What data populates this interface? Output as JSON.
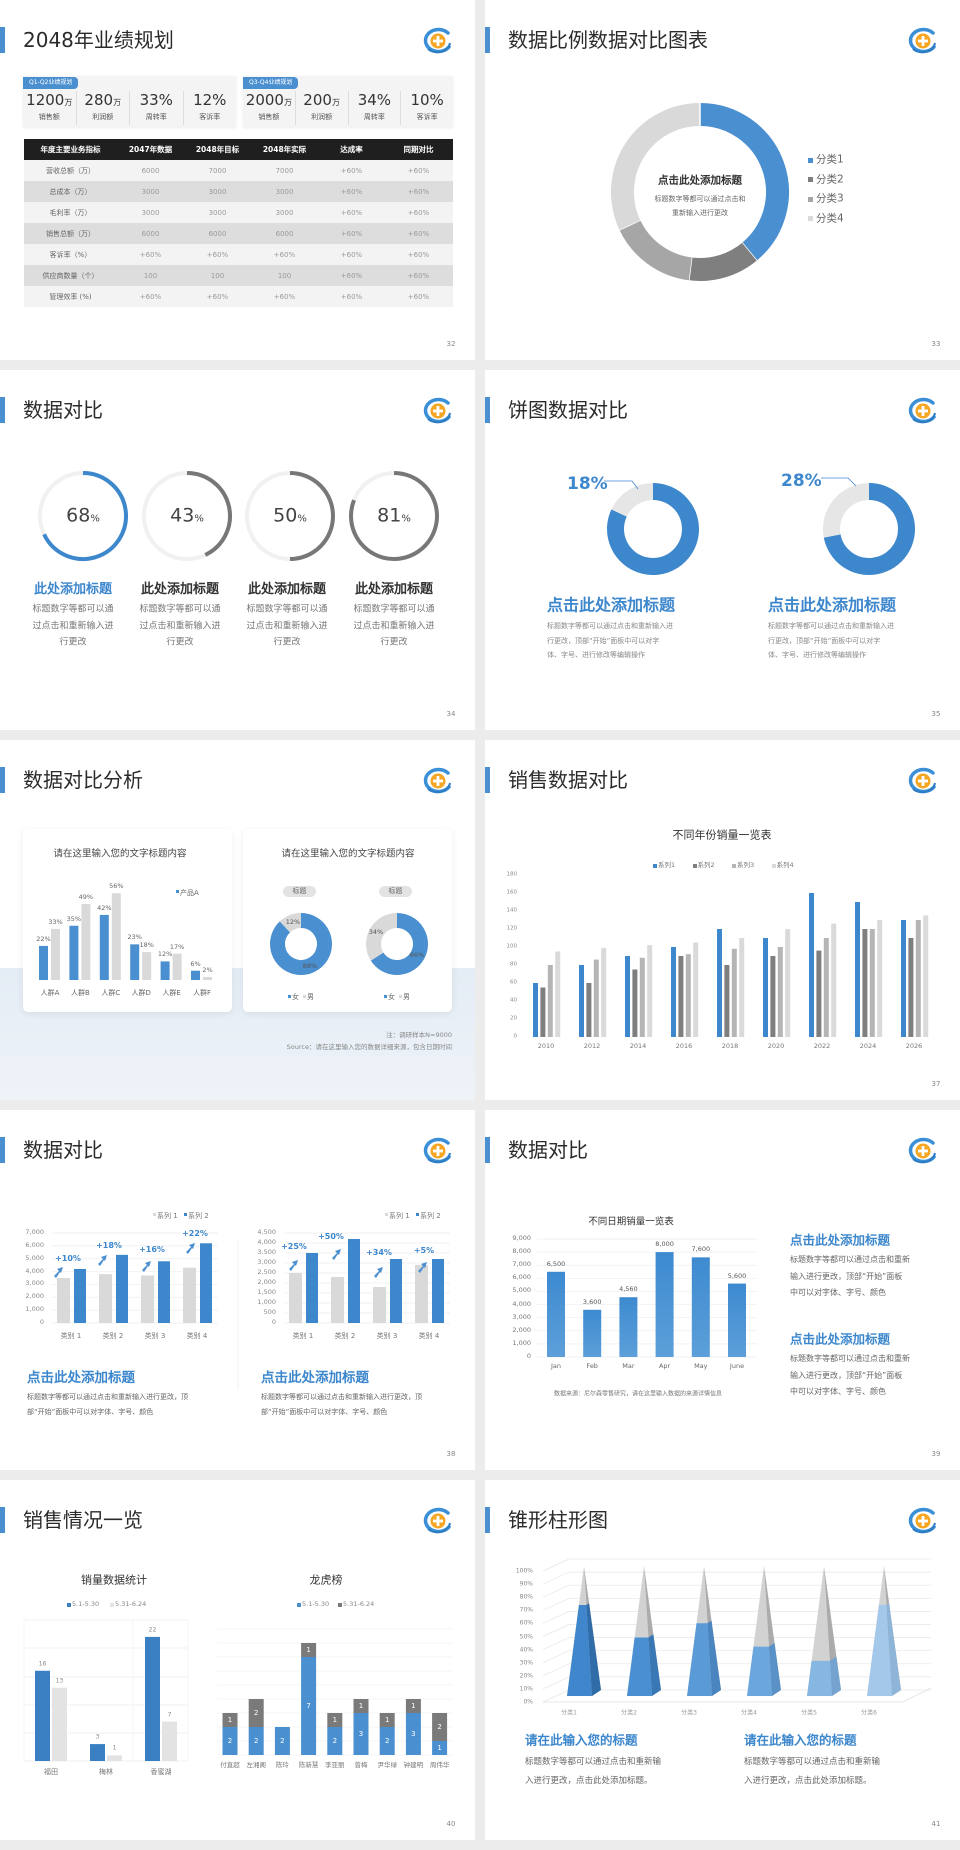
{
  "s32": {
    "title": "2048年业绩规划",
    "page": "32",
    "cards": [
      {
        "tag": "Q1-Q2业绩规划",
        "kpis": [
          {
            "value": "1200",
            "unit": "万",
            "label": "销售额"
          },
          {
            "value": "280",
            "unit": "万",
            "label": "利润额"
          },
          {
            "value": "33%",
            "unit": "",
            "label": "周转率"
          },
          {
            "value": "12%",
            "unit": "",
            "label": "客诉率"
          }
        ]
      },
      {
        "tag": "Q3-Q4业绩规划",
        "kpis": [
          {
            "value": "2000",
            "unit": "万",
            "label": "销售额"
          },
          {
            "value": "200",
            "unit": "万",
            "label": "利润额"
          },
          {
            "value": "34%",
            "unit": "",
            "label": "周转率"
          },
          {
            "value": "10%",
            "unit": "",
            "label": "客诉率"
          }
        ]
      }
    ],
    "table": {
      "headers": [
        "年度主要业务指标",
        "2047年数据",
        "2048年目标",
        "2048年实际",
        "达成率",
        "同期对比"
      ],
      "rows": [
        [
          "营收总额（万）",
          "6000",
          "7000",
          "7000",
          "+60%",
          "+60%"
        ],
        [
          "总成本（万）",
          "3000",
          "3000",
          "3000",
          "+60%",
          "+60%"
        ],
        [
          "毛利率（万）",
          "3000",
          "3000",
          "3000",
          "+60%",
          "+60%"
        ],
        [
          "销售总额（万）",
          "6000",
          "6000",
          "6000",
          "+60%",
          "+60%"
        ],
        [
          "客诉率（%）",
          "+60%",
          "+60%",
          "+60%",
          "+60%",
          "+60%"
        ],
        [
          "供应商数量（个）",
          "100",
          "100",
          "100",
          "+60%",
          "+60%"
        ],
        [
          "管理效率 (%)",
          "+60%",
          "+60%",
          "+60%",
          "+60%",
          "+60%"
        ]
      ]
    }
  },
  "s33": {
    "title": "数据比例数据对比图表",
    "page": "33",
    "center_title": "点击此处添加标题",
    "center_text": [
      "标题数字等都可以通过点击和",
      "重新输入进行更改"
    ]
  },
  "s34": {
    "title": "数据对比",
    "page": "34",
    "items": [
      {
        "value": 68,
        "number": "68",
        "unit": "%",
        "heading": "此处添加标题",
        "text": [
          "标题数字等都可以通",
          "过点击和重新输入进",
          "行更改"
        ],
        "color": "#3d87cd"
      },
      {
        "value": 43,
        "number": "43",
        "unit": "%",
        "heading": "此处添加标题",
        "text": [
          "标题数字等都可以通",
          "过点击和重新输入进",
          "行更改"
        ],
        "color": "#777777"
      },
      {
        "value": 50,
        "number": "50",
        "unit": "%",
        "heading": "此处添加标题",
        "text": [
          "标题数字等都可以通",
          "过点击和重新输入进",
          "行更改"
        ],
        "color": "#777777"
      },
      {
        "value": 81,
        "number": "81",
        "unit": "%",
        "heading": "此处添加标题",
        "text": [
          "标题数字等都可以通",
          "过点击和重新输入进",
          "行更改"
        ],
        "color": "#777777"
      }
    ]
  },
  "s35": {
    "title": "饼图数据对比",
    "page": "35",
    "items": [
      {
        "value": 18,
        "label": "18%",
        "heading": "点击此处添加标题",
        "text": [
          "标题数字等都可以通过点击和重新输入进",
          "行更改，顶部“开始”面板中可以对字",
          "体、字号、进行修改等编辑操作"
        ]
      },
      {
        "value": 28,
        "label": "28%",
        "heading": "点击此处添加标题",
        "text": [
          "标题数字等都可以通过点击和重新输入进",
          "行更改，顶部“开始”面板中可以对字",
          "体、字号、进行修改等编辑操作"
        ]
      }
    ]
  },
  "s36": {
    "title": "数据对比分析",
    "page": "36",
    "note": "注：调研样本N=9000",
    "source": "Source：请在这里输入您的数据详细来源，包含日期时间"
  },
  "s37": {
    "title": "销售数据对比",
    "page": "37"
  },
  "s38": {
    "title": "数据对比",
    "page": "38",
    "blocks": [
      {
        "heading": "点击此处添加标题",
        "text": [
          "标题数字等都可以通过点击和重新输入进行更改，顶",
          "部“开始”面板中可以对字体、字号、颜色"
        ]
      },
      {
        "heading": "点击此处添加标题",
        "text": [
          "标题数字等都可以通过点击和重新输入进行更改，顶",
          "部“开始”面板中可以对字体、字号、颜色"
        ]
      }
    ]
  },
  "s39": {
    "title": "数据对比",
    "page": "39",
    "source": "数据来源：尼尔森零售研究，请在这里输入数据的来源详情信息",
    "blocks": [
      {
        "heading": "点击此处添加标题",
        "text": [
          "标题数字等都可以通过点击和重新",
          "输入进行更改，顶部“开始”面板",
          "中可以对字体、字号、颜色"
        ]
      },
      {
        "heading": "点击此处添加标题",
        "text": [
          "标题数字等都可以通过点击和重新",
          "输入进行更改，顶部“开始”面板",
          "中可以对字体、字号、颜色"
        ]
      }
    ]
  },
  "s40": {
    "title": "销售情况一览",
    "page": "40"
  },
  "s41": {
    "title": "锥形柱形图",
    "page": "41",
    "blocks": [
      {
        "heading": "请在此输入您的标题",
        "text": [
          "标题数字等都可以通过点击和重新输",
          "入进行更改，点击此处添加标题。"
        ]
      },
      {
        "heading": "请在此输入您的标题",
        "text": [
          "标题数字等都可以通过点击和重新输",
          "入进行更改，点击此处添加标题。"
        ]
      }
    ]
  },
  "colors": {
    "accent": "#4a8fd0",
    "dark_gray": "#7f7f7f",
    "mid_gray": "#a6a6a6",
    "light_gray": "#d9d9d9"
  },
  "chart_data": [
    {
      "type": "pie",
      "donut": true,
      "categories": [
        "分类1",
        "分类2",
        "分类3",
        "分类4"
      ],
      "values": [
        39,
        13,
        16,
        32
      ],
      "colors": [
        "#4a8fd0",
        "#7f7f7f",
        "#a6a6a6",
        "#d9d9d9"
      ],
      "legend": "right"
    },
    {
      "type": "bar",
      "title": "请在这里输入您的文字标题内容",
      "categories": [
        "人群A",
        "人群B",
        "人群C",
        "人群D",
        "人群E",
        "人群F"
      ],
      "value_suffix": "%",
      "series": [
        {
          "name": "产品A",
          "values": [
            22,
            35,
            42,
            23,
            12,
            6
          ],
          "color": "#4a8fd0"
        },
        {
          "values": [
            33,
            49,
            56,
            18,
            17,
            2
          ],
          "color": "#d9d9d9"
        }
      ],
      "legend": "top-right"
    },
    {
      "type": "pie",
      "title": "请在这里输入您的文字标题内容",
      "categories": [
        "女",
        "男"
      ],
      "colors": [
        "#4a8fd0",
        "#d9d9d9"
      ],
      "value_suffix": "%",
      "charts": [
        {
          "tag": "标题",
          "values": [
            88,
            12
          ]
        },
        {
          "tag": "标题",
          "values": [
            66,
            34
          ]
        }
      ],
      "legend": "bottom"
    },
    {
      "type": "bar",
      "title": "不同年份销量一览表",
      "categories": [
        "2010",
        "2012",
        "2014",
        "2016",
        "2018",
        "2020",
        "2022",
        "2024",
        "2026"
      ],
      "ylim": [
        0,
        180
      ],
      "yticks": [
        "0",
        "20",
        "40",
        "60",
        "80",
        "100",
        "120",
        "140",
        "160",
        "180"
      ],
      "legend": "top",
      "series": [
        {
          "name": "系列1",
          "color": "#3d87cd",
          "values": [
            60,
            80,
            90,
            100,
            120,
            110,
            160,
            150,
            130
          ]
        },
        {
          "name": "系列2",
          "color": "#7f7f7f",
          "values": [
            55,
            60,
            75,
            90,
            80,
            90,
            96,
            120,
            110
          ]
        },
        {
          "name": "系列3",
          "color": "#b5b5b5",
          "values": [
            80,
            86,
            88,
            92,
            98,
            100,
            110,
            120,
            130
          ]
        },
        {
          "name": "系列4",
          "color": "#dadada",
          "values": [
            95,
            99,
            102,
            105,
            110,
            120,
            126,
            130,
            135
          ]
        }
      ]
    },
    {
      "type": "bar",
      "categories": [
        "类别 1",
        "类别 2",
        "类别 3",
        "类别 4"
      ],
      "ylim": [
        0,
        7000
      ],
      "yticks": [
        "0",
        "1,000",
        "2,000",
        "3,000",
        "4,000",
        "5,000",
        "6,000",
        "7,000"
      ],
      "legend": "top-right",
      "series": [
        {
          "name": "系列 1",
          "color": "#d9d9d9",
          "values": [
            3500,
            3800,
            3700,
            4300
          ]
        },
        {
          "name": "系列 2",
          "color": "#3d87cd",
          "values": [
            4200,
            5300,
            4800,
            6200
          ]
        }
      ],
      "annotations": [
        "+10%",
        "+18%",
        "+16%",
        "+22%"
      ]
    },
    {
      "type": "bar",
      "categories": [
        "类别 1",
        "类别 2",
        "类别 3",
        "类别 4"
      ],
      "ylim": [
        0,
        4500
      ],
      "yticks": [
        "0",
        "500",
        "1,000",
        "1,500",
        "2,000",
        "2,500",
        "3,000",
        "3,500",
        "4,000",
        "4,500"
      ],
      "legend": "top-right",
      "series": [
        {
          "name": "系列 1",
          "color": "#d9d9d9",
          "values": [
            2500,
            2300,
            1800,
            2900
          ]
        },
        {
          "name": "系列 2",
          "color": "#3d87cd",
          "values": [
            3500,
            4200,
            3200,
            3200
          ]
        }
      ],
      "annotations": [
        "+25%",
        "+50%",
        "+34%",
        "+5%"
      ]
    },
    {
      "type": "bar",
      "title": "不同日期销量一览表",
      "categories": [
        "Jan",
        "Feb",
        "Mar",
        "Apr",
        "May",
        "June"
      ],
      "ylim": [
        0,
        9000
      ],
      "yticks": [
        "0",
        "1,000",
        "2,000",
        "3,000",
        "4,000",
        "5,000",
        "6,000",
        "7,000",
        "8,000",
        "9,000"
      ],
      "values": [
        6500,
        3600,
        4560,
        8000,
        7600,
        5600
      ],
      "value_labels": [
        "6,500",
        "3,600",
        "4,560",
        "8,000",
        "7,600",
        "5,600"
      ]
    },
    {
      "type": "bar",
      "title": "销量数据统计",
      "categories": [
        "福田",
        "梅林",
        "香蜜湖"
      ],
      "legend": "top",
      "series": [
        {
          "name": "5.1-5.30",
          "color": "#3a7fc1",
          "values": [
            16,
            3,
            22
          ]
        },
        {
          "name": "5.31-6.24",
          "color": "#e3e3e3",
          "values": [
            13,
            1,
            7
          ]
        }
      ]
    },
    {
      "type": "bar",
      "stacked": true,
      "title": "龙虎榜",
      "categories": [
        "付直超",
        "左湘阁",
        "陈玲",
        "陈新慧",
        "李亚丽",
        "曾梅",
        "尹华绿",
        "钟建明",
        "周伟华"
      ],
      "legend": "top",
      "series": [
        {
          "name": "5.1-5.30",
          "color": "#4a8fd0",
          "values": [
            2,
            2,
            2,
            7,
            2,
            3,
            2,
            3,
            1
          ]
        },
        {
          "name": "5.31-6.24",
          "color": "#7a7a7a",
          "values": [
            1,
            2,
            0,
            1,
            1,
            1,
            1,
            1,
            2
          ]
        }
      ]
    },
    {
      "type": "bar",
      "subtype": "3d-cone-100%-stacked",
      "categories": [
        "分类1",
        "分类2",
        "分类3",
        "分类4",
        "分类5",
        "分类6"
      ],
      "ylim": [
        0,
        100
      ],
      "yticks": [
        "0%",
        "10%",
        "20%",
        "30%",
        "40%",
        "50%",
        "60%",
        "70%",
        "80%",
        "90%",
        "100%"
      ],
      "values": [
        70,
        45,
        56,
        38,
        27,
        70
      ]
    }
  ]
}
